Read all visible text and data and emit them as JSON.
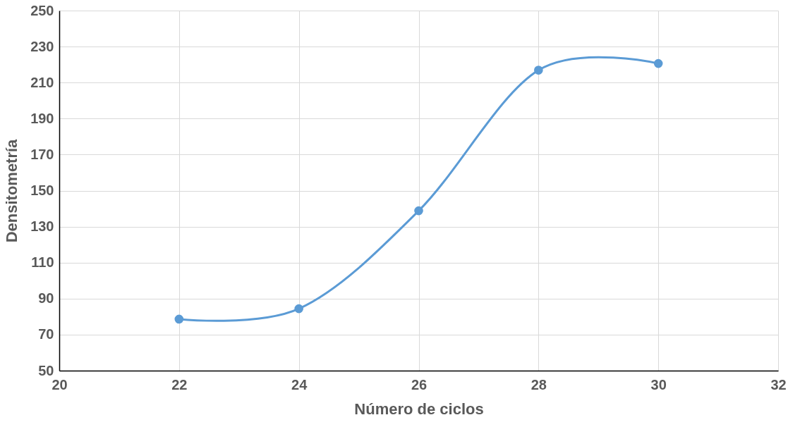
{
  "chart_data": {
    "type": "line",
    "xlabel": "Número de ciclos",
    "ylabel": "Densitometría",
    "x": [
      22,
      24,
      26,
      28,
      30
    ],
    "series": [
      {
        "color": "#5b9bd5",
        "values": [
          78.6,
          84.4,
          138.8,
          216.9,
          220.6
        ]
      }
    ],
    "xlim": [
      20,
      32
    ],
    "xticks": [
      20,
      22,
      24,
      26,
      28,
      30,
      32
    ],
    "ylim": [
      50,
      250
    ],
    "yticks": [
      50,
      70,
      90,
      110,
      130,
      150,
      170,
      190,
      210,
      230,
      250
    ],
    "grid": true,
    "marker": "circle",
    "line_style": "solid"
  }
}
